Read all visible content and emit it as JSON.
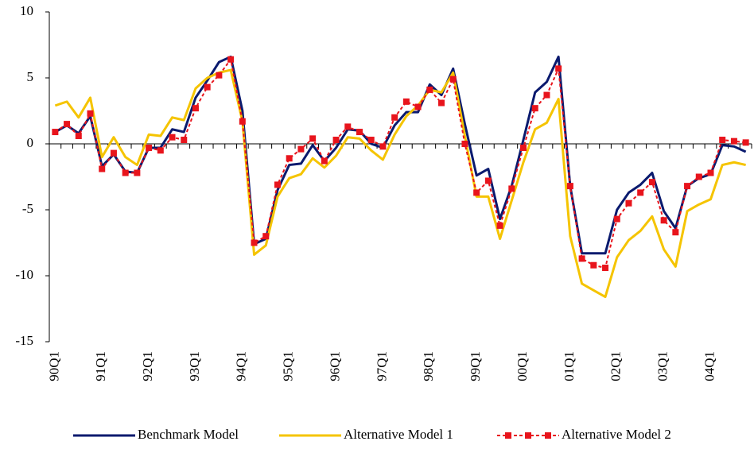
{
  "chart_data": {
    "type": "line",
    "categories": [
      "90Q1",
      null,
      null,
      null,
      "91Q1",
      null,
      null,
      null,
      "92Q1",
      null,
      null,
      null,
      "93Q1",
      null,
      null,
      null,
      "94Q1",
      null,
      null,
      null,
      "95Q1",
      null,
      null,
      null,
      "96Q1",
      null,
      null,
      null,
      "97Q1",
      null,
      null,
      null,
      "98Q1",
      null,
      null,
      null,
      "99Q1",
      null,
      null,
      null,
      "00Q1",
      null,
      null,
      null,
      "01Q1",
      null,
      null,
      null,
      "02Q1",
      null,
      null,
      null,
      "03Q1",
      null,
      null,
      null,
      "04Q1",
      null,
      null,
      null
    ],
    "series": [
      {
        "name": "Benchmark Model",
        "color": "#0a1a6e",
        "style": "solid",
        "values": [
          0.9,
          1.4,
          0.8,
          2.1,
          -1.7,
          -0.8,
          -2.1,
          -2.2,
          -0.3,
          -0.3,
          1.1,
          0.9,
          3.5,
          4.8,
          6.2,
          6.6,
          2.5,
          -7.6,
          -7.2,
          -3.5,
          -1.6,
          -1.5,
          -0.1,
          -1.3,
          -0.3,
          1.1,
          1.0,
          0.0,
          -0.3,
          1.4,
          2.4,
          2.4,
          4.5,
          3.7,
          5.7,
          1.5,
          -2.4,
          -1.9,
          -5.7,
          -3.2,
          0.3,
          3.9,
          4.7,
          6.6,
          -3.2,
          -8.3,
          -8.3,
          -8.3,
          -5.0,
          -3.7,
          -3.1,
          -2.2,
          -5.1,
          -6.4,
          -3.2,
          -2.6,
          -2.3,
          -0.1,
          -0.2,
          -0.6
        ]
      },
      {
        "name": "Alternative Model 1",
        "color": "#f5c400",
        "style": "solid",
        "values": [
          2.9,
          3.2,
          2.0,
          3.5,
          -1.0,
          0.5,
          -1.0,
          -1.6,
          0.7,
          0.6,
          2.0,
          1.8,
          4.2,
          5.0,
          5.4,
          5.6,
          1.7,
          -8.4,
          -7.7,
          -4.0,
          -2.6,
          -2.3,
          -1.1,
          -1.8,
          -0.9,
          0.5,
          0.4,
          -0.5,
          -1.2,
          0.7,
          2.1,
          2.9,
          4.1,
          3.9,
          5.4,
          0.6,
          -4.0,
          -4.0,
          -7.2,
          -4.3,
          -1.4,
          1.1,
          1.6,
          3.4,
          -7.0,
          -10.6,
          -11.1,
          -11.6,
          -8.6,
          -7.3,
          -6.6,
          -5.5,
          -8.0,
          -9.3,
          -5.1,
          -4.6,
          -4.2,
          -1.6,
          -1.4,
          -1.6
        ]
      },
      {
        "name": "Alternative Model 2",
        "color": "#e8141c",
        "style": "dashed",
        "marker": "square",
        "values": [
          0.9,
          1.5,
          0.6,
          2.3,
          -1.9,
          -0.7,
          -2.2,
          -2.2,
          -0.3,
          -0.5,
          0.5,
          0.3,
          2.7,
          4.3,
          5.2,
          6.4,
          1.7,
          -7.5,
          -7.0,
          -3.1,
          -1.1,
          -0.4,
          0.4,
          -1.3,
          0.3,
          1.3,
          0.9,
          0.3,
          -0.2,
          2.0,
          3.2,
          2.8,
          4.1,
          3.1,
          4.9,
          0.0,
          -3.7,
          -2.8,
          -6.2,
          -3.4,
          -0.3,
          2.7,
          3.7,
          5.7,
          -3.2,
          -8.7,
          -9.2,
          -9.4,
          -5.7,
          -4.5,
          -3.7,
          -2.9,
          -5.8,
          -6.7,
          -3.2,
          -2.5,
          -2.2,
          0.3,
          0.2,
          0.1
        ]
      }
    ],
    "ylim": [
      -15,
      10
    ],
    "yticks": [
      -15,
      -10,
      -5,
      0,
      5,
      10
    ],
    "grid": false,
    "legend": "bottom"
  }
}
